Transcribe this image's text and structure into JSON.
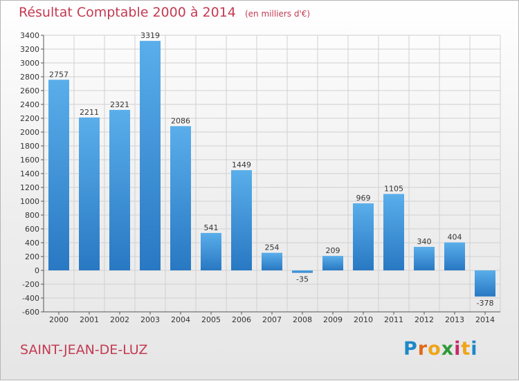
{
  "header": {
    "title": "Résultat Comptable 2000 à 2014",
    "unit_note": "(en milliers d'€)"
  },
  "footer": {
    "city": "SAINT-JEAN-DE-LUZ",
    "brand_letters": [
      "P",
      "r",
      "o",
      "x",
      "i",
      "t",
      "i"
    ],
    "brand_colors": [
      "#1e88c8",
      "#e06a17",
      "#f0a417",
      "#2e9a38",
      "#c62a6a",
      "#f0a417",
      "#1e88c8"
    ]
  },
  "colors": {
    "title": "#c33a52",
    "bar_light": "#5aaeea",
    "bar_dark": "#2878c3",
    "grid": "#d0d0d0"
  },
  "chart_data": {
    "type": "bar",
    "categories": [
      "2000",
      "2001",
      "2002",
      "2003",
      "2004",
      "2005",
      "2006",
      "2007",
      "2008",
      "2009",
      "2010",
      "2011",
      "2012",
      "2013",
      "2014"
    ],
    "values": [
      2757,
      2211,
      2321,
      3319,
      2086,
      541,
      1449,
      254,
      -35,
      209,
      969,
      1105,
      340,
      404,
      -378
    ],
    "data_labels": [
      "2757",
      "2211",
      "2321",
      "3319",
      "2086",
      "541",
      "1449",
      "254",
      "-35",
      "209",
      "969",
      "1105",
      "340",
      "404",
      "-378"
    ],
    "yticks": [
      3400,
      3200,
      3000,
      2800,
      2600,
      2400,
      2200,
      2000,
      1800,
      1600,
      1400,
      1200,
      1000,
      800,
      600,
      400,
      200,
      0,
      -200,
      -400,
      -600
    ],
    "ylim": [
      -600,
      3400
    ],
    "grid": true,
    "title": "Résultat Comptable 2000 à 2014",
    "xlabel": "",
    "ylabel": ""
  }
}
